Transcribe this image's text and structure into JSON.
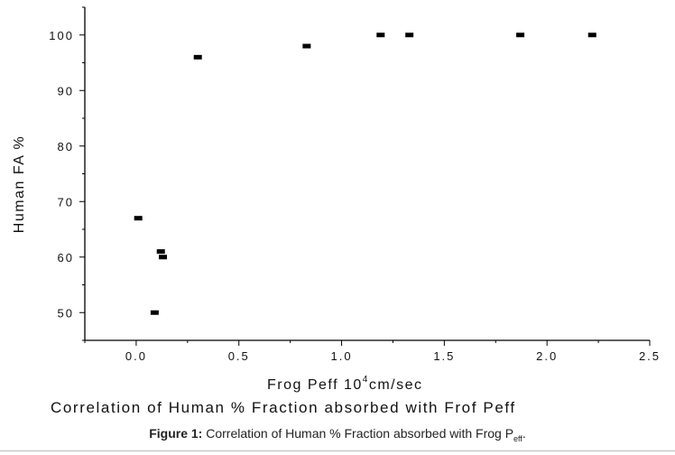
{
  "chart_data": {
    "type": "scatter",
    "title": "Correlation of Human % Fraction absorbed with Frof Peff",
    "xlabel_main": "Frog Peff 10",
    "xlabel_sup": "4",
    "xlabel_unit": "cm/sec",
    "ylabel": "Human FA %",
    "xlim": [
      -0.25,
      2.5
    ],
    "ylim": [
      45,
      105
    ],
    "xticks": [
      "0.0",
      "0.5",
      "1.0",
      "1.5",
      "2.0",
      "2.5"
    ],
    "yticks": [
      "50",
      "60",
      "70",
      "80",
      "90",
      "100"
    ],
    "xtick_values": [
      0.0,
      0.5,
      1.0,
      1.5,
      2.0,
      2.5
    ],
    "ytick_values": [
      50,
      60,
      70,
      80,
      90,
      100
    ],
    "grid": false,
    "marker": "square",
    "color": "#000000",
    "points": [
      {
        "x": 0.01,
        "y": 67
      },
      {
        "x": 0.09,
        "y": 50
      },
      {
        "x": 0.12,
        "y": 61
      },
      {
        "x": 0.13,
        "y": 60
      },
      {
        "x": 0.3,
        "y": 96
      },
      {
        "x": 0.83,
        "y": 98
      },
      {
        "x": 1.19,
        "y": 100
      },
      {
        "x": 1.33,
        "y": 100
      },
      {
        "x": 1.87,
        "y": 100
      },
      {
        "x": 2.22,
        "y": 100
      }
    ]
  },
  "caption": {
    "label": "Figure 1:",
    "text": "Correlation of Human % Fraction absorbed with Frog P",
    "sub": "eff",
    "end": "."
  }
}
